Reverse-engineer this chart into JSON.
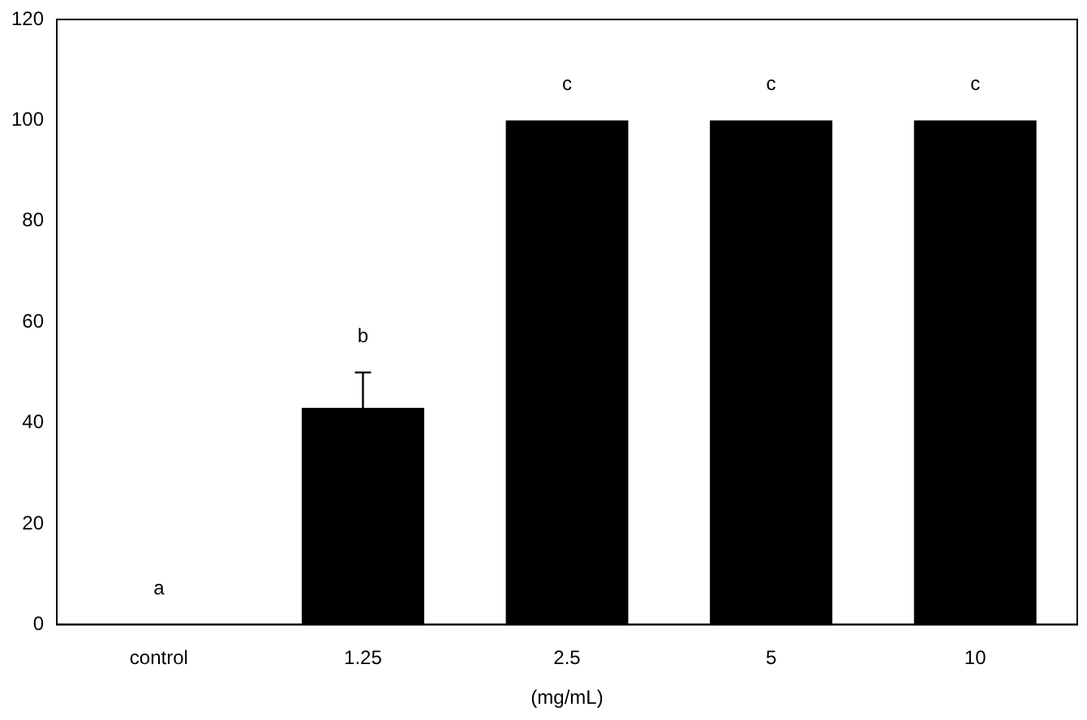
{
  "chart_data": {
    "type": "bar",
    "xlabel": "(mg/mL)",
    "categories": [
      "control",
      "1.25",
      "2.5",
      "5",
      "10"
    ],
    "values": [
      0,
      43,
      100,
      100,
      100
    ],
    "color": "#000000",
    "errors": [
      null,
      7,
      null,
      null,
      null
    ],
    "ylim": [
      0,
      120
    ],
    "yticks": [
      0,
      20,
      40,
      60,
      80,
      100,
      120
    ],
    "grid": false,
    "legend": false,
    "annotations": [
      "a",
      "b",
      "c",
      "c",
      "c"
    ]
  }
}
